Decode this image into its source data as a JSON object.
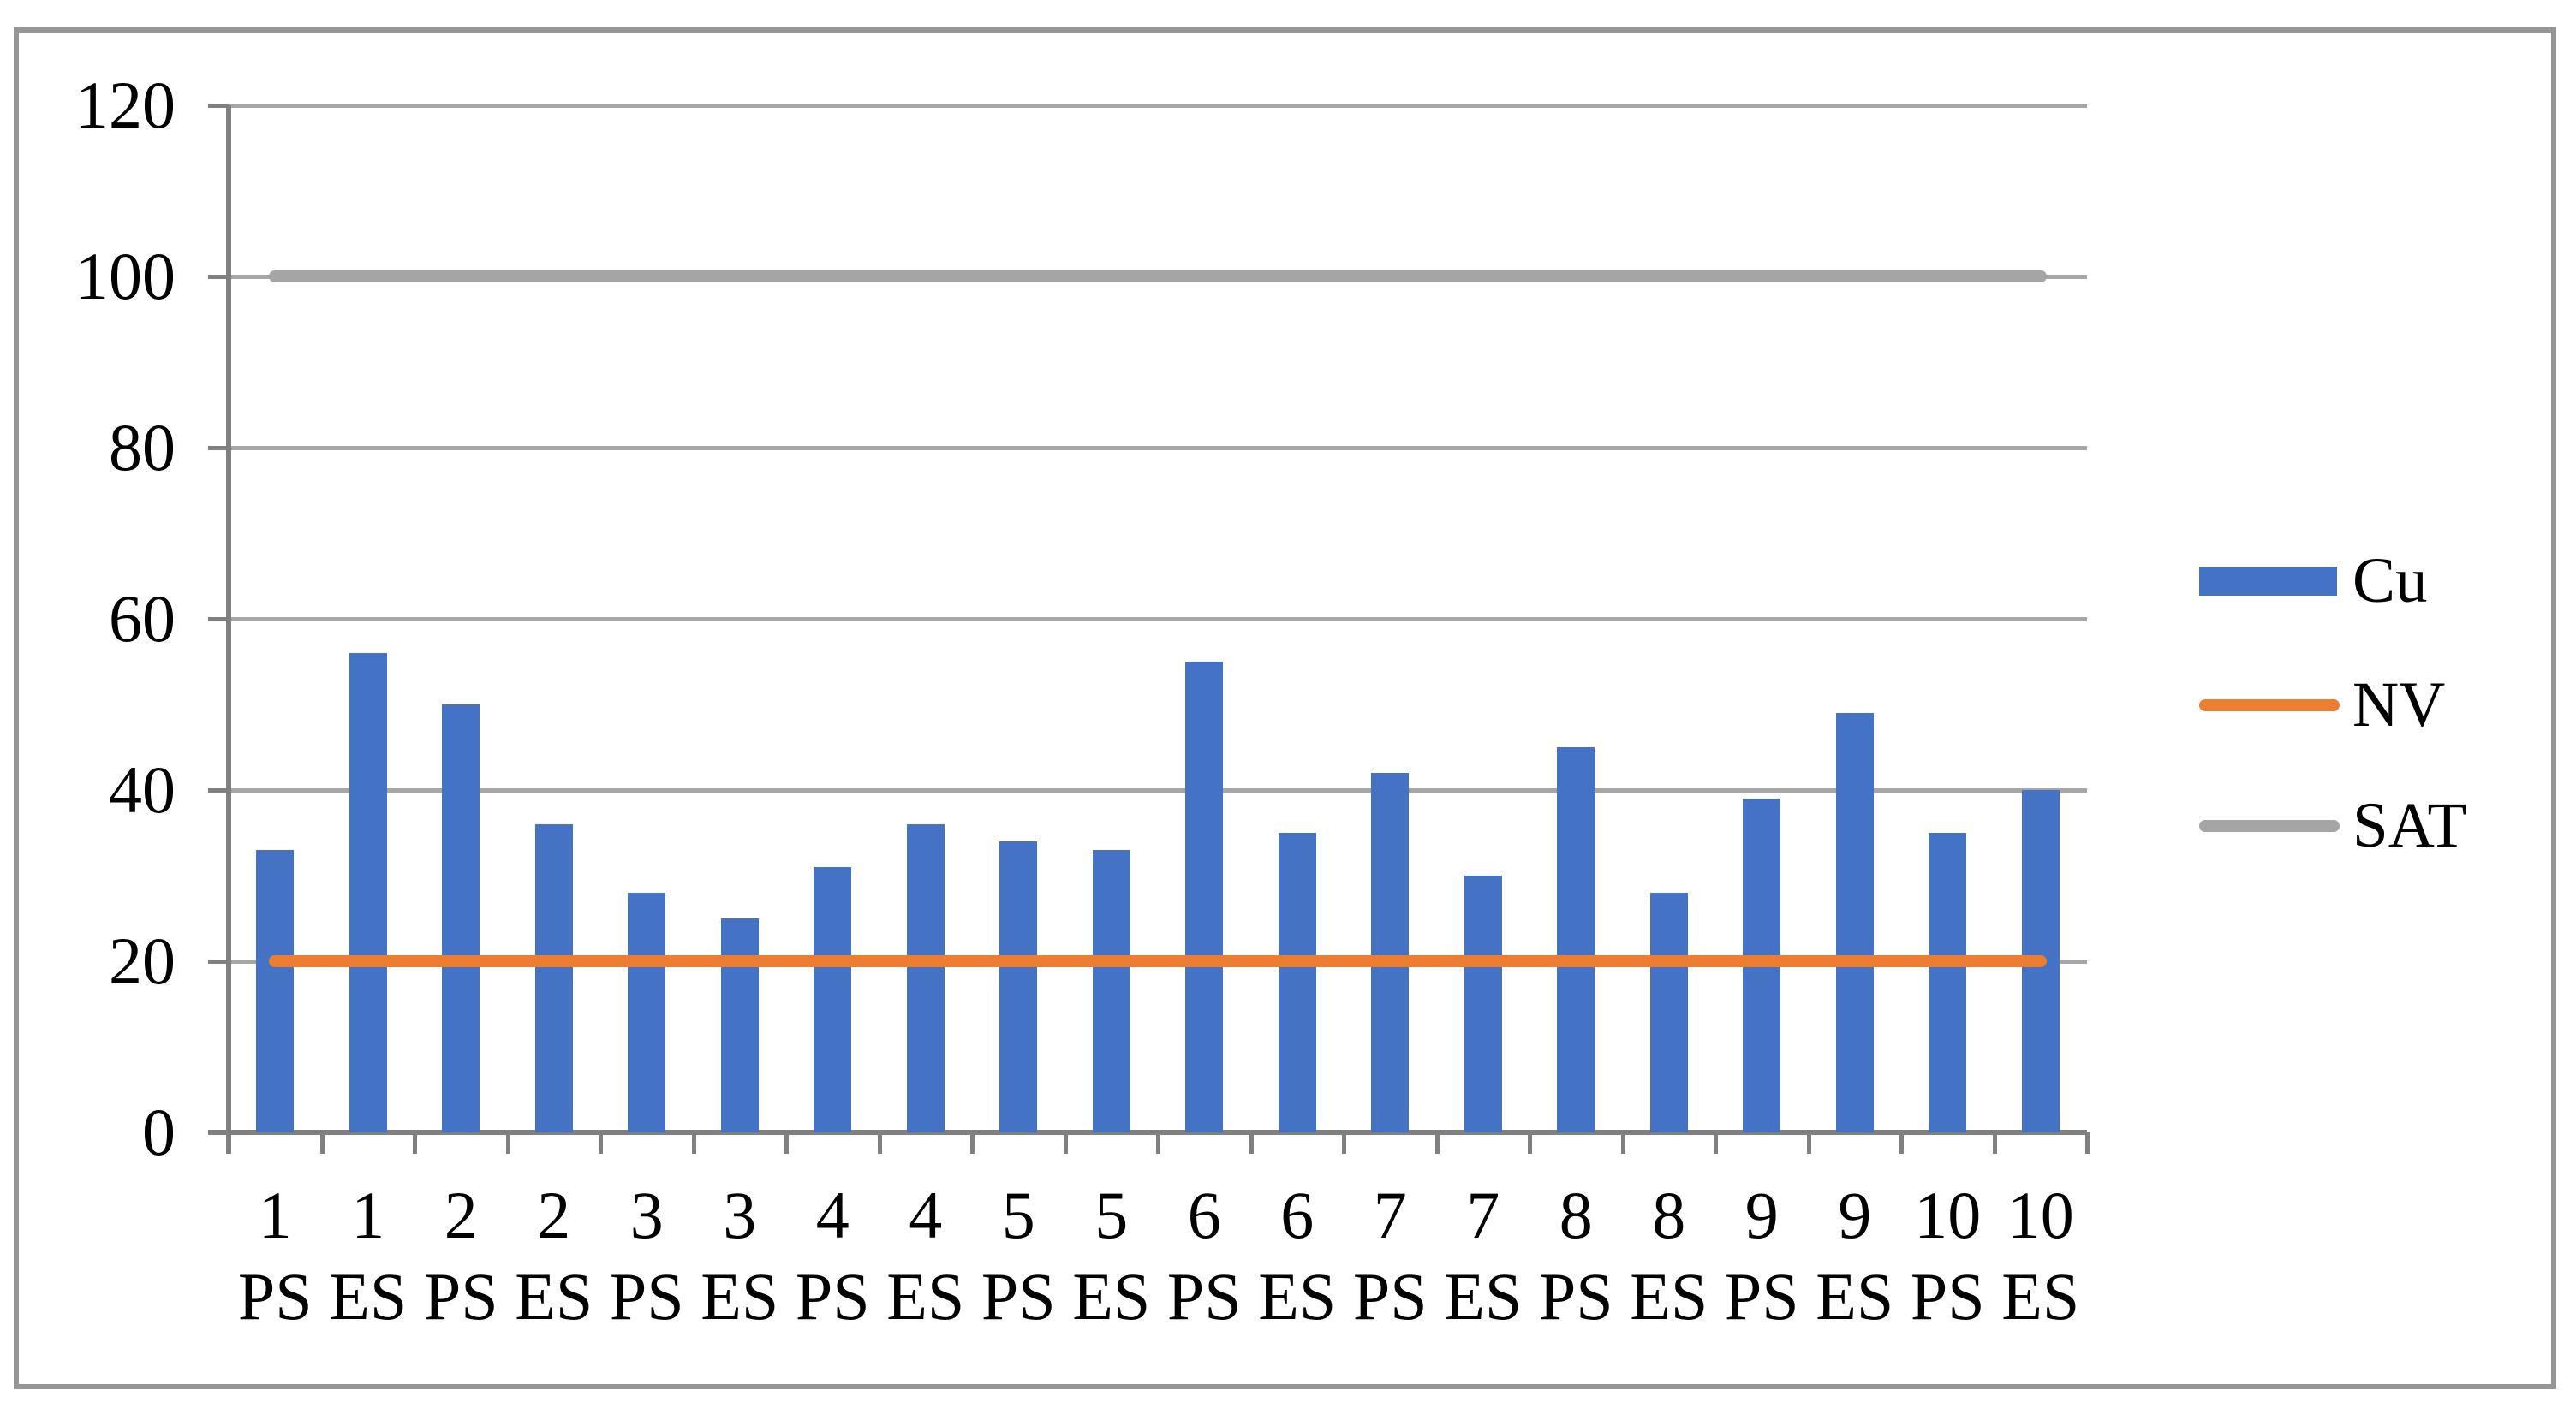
{
  "chart_data": {
    "type": "bar",
    "title": "",
    "xlabel": "",
    "ylabel": "",
    "ylim": [
      0,
      120
    ],
    "yticks": [
      0,
      20,
      40,
      60,
      80,
      100,
      120
    ],
    "grid": true,
    "legend_position": "right",
    "categories_top": [
      "1",
      "1",
      "2",
      "2",
      "3",
      "3",
      "4",
      "4",
      "5",
      "5",
      "6",
      "6",
      "7",
      "7",
      "8",
      "8",
      "9",
      "9",
      "10",
      "10"
    ],
    "categories_bottom": [
      "PS",
      "ES",
      "PS",
      "ES",
      "PS",
      "ES",
      "PS",
      "ES",
      "PS",
      "ES",
      "PS",
      "ES",
      "PS",
      "ES",
      "PS",
      "ES",
      "PS",
      "ES",
      "PS",
      "ES"
    ],
    "series": [
      {
        "name": "Cu",
        "type": "bar",
        "color": "#4472C4",
        "values": [
          33,
          56,
          50,
          36,
          28,
          25,
          31,
          36,
          34,
          33,
          55,
          35,
          42,
          30,
          45,
          28,
          39,
          49,
          35,
          40
        ]
      },
      {
        "name": "NV",
        "type": "line",
        "color": "#ED7D31",
        "value": 20
      },
      {
        "name": "SAT",
        "type": "line",
        "color": "#A5A5A5",
        "value": 100
      }
    ]
  },
  "colors": {
    "bar_blue": "#4472C4",
    "nv_orange": "#ED7D31",
    "sat_gray": "#A5A5A5",
    "gridline_gray": "#A6A6A6",
    "axis_gray": "#808080",
    "border_gray": "#969696",
    "text_black": "#000000"
  }
}
